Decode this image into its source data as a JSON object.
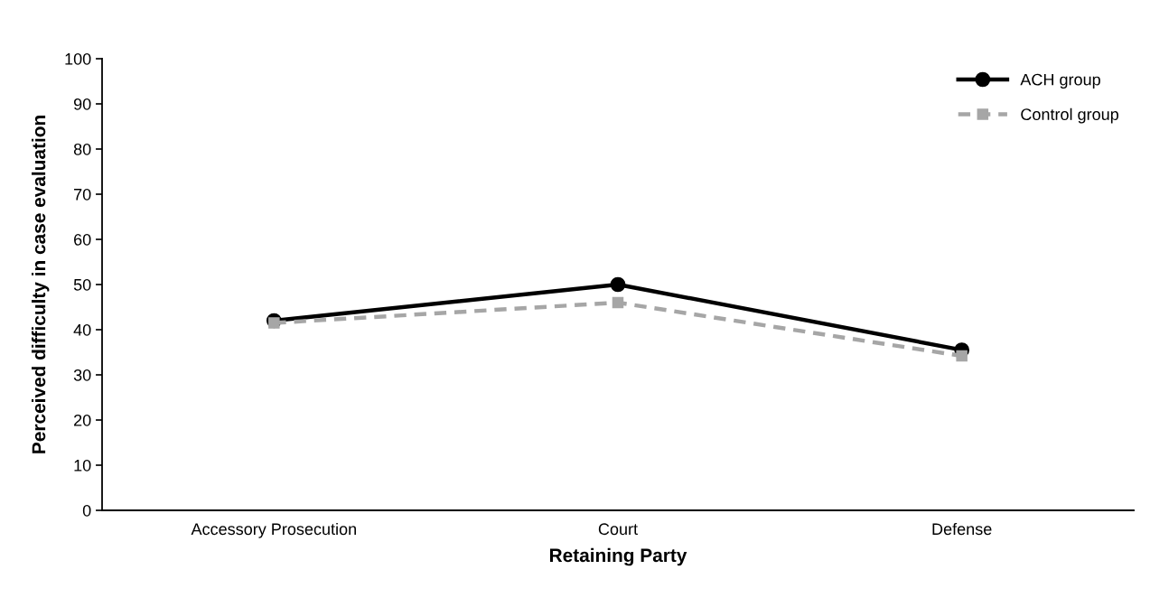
{
  "chart_data": {
    "type": "line",
    "xlabel": "Retaining Party",
    "ylabel": "Perceived difficulty in case evaluation",
    "categories": [
      "Accessory Prosecution",
      "Court",
      "Defense"
    ],
    "series": [
      {
        "name": "ACH group",
        "color": "#000000",
        "values": [
          42,
          50,
          35.5
        ],
        "marker": "circle",
        "line_style": "solid"
      },
      {
        "name": "Control group",
        "color": "#a6a6a6",
        "values": [
          41.5,
          46,
          34.2
        ],
        "marker": "square",
        "line_style": "dashed"
      }
    ],
    "ylim": [
      0,
      100
    ],
    "yticks": [
      0,
      10,
      20,
      30,
      40,
      50,
      60,
      70,
      80,
      90,
      100
    ],
    "grid": false,
    "legend": "top right"
  }
}
